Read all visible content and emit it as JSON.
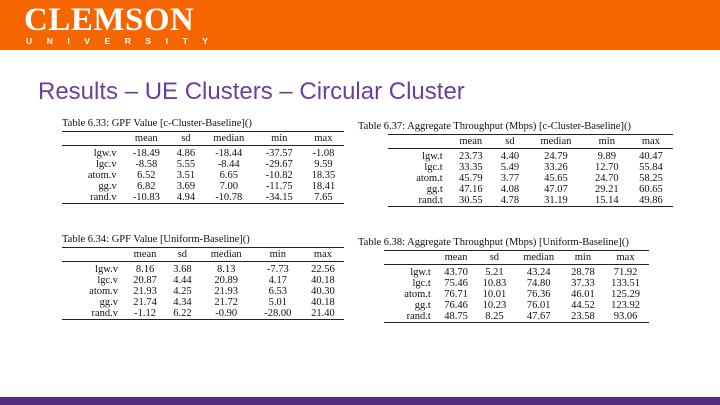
{
  "header": {
    "logo_word": "CLEMSON",
    "logo_sub": [
      "U",
      "N",
      "I",
      "V",
      "E",
      "R",
      "S",
      "I",
      "T",
      "Y"
    ]
  },
  "title": "Results – UE Clusters – Circular Cluster",
  "colors": {
    "orange": "#f56600",
    "purple": "#522d80",
    "title": "#6b3fa0"
  },
  "tables": [
    {
      "caption": "Table 6.33: GPF Value [c-Cluster-Baseline]()",
      "columns": [
        "",
        "mean",
        "sd",
        "median",
        "min",
        "max"
      ],
      "rows": [
        [
          "lgw.v",
          "-18.49",
          "4.86",
          "-18.44",
          "-37.57",
          "-1.08"
        ],
        [
          "lgc.v",
          "-8.58",
          "5.55",
          "-8.44",
          "-29.67",
          "9.59"
        ],
        [
          "atom.v",
          "6.52",
          "3.51",
          "6.65",
          "-10.82",
          "18.35"
        ],
        [
          "gg.v",
          "6.82",
          "3.69",
          "7.00",
          "-11.75",
          "18.41"
        ],
        [
          "rand.v",
          "-10.83",
          "4.94",
          "-10.78",
          "-34.15",
          "7.65"
        ]
      ]
    },
    {
      "caption": "Table 6.34: GPF Value [Uniform-Baseline]()",
      "columns": [
        "",
        "mean",
        "sd",
        "median",
        "min",
        "max"
      ],
      "rows": [
        [
          "lgw.v",
          "8.16",
          "3.68",
          "8.13",
          "-7.73",
          "22.56"
        ],
        [
          "lgc.v",
          "20.87",
          "4.44",
          "20.89",
          "4.17",
          "40.18"
        ],
        [
          "atom.v",
          "21.93",
          "4.25",
          "21.93",
          "6.53",
          "40.30"
        ],
        [
          "gg.v",
          "21.74",
          "4.34",
          "21.72",
          "5.01",
          "40.18"
        ],
        [
          "rand.v",
          "-1.12",
          "6.22",
          "-0.90",
          "-28.00",
          "21.40"
        ]
      ]
    },
    {
      "caption": "Table 6.37: Aggregate Throughput (Mbps) [c-Cluster-Baseline]()",
      "columns": [
        "",
        "mean",
        "sd",
        "median",
        "min",
        "max"
      ],
      "rows": [
        [
          "lgw.t",
          "23.73",
          "4.40",
          "24.79",
          "9.89",
          "40.47"
        ],
        [
          "lgc.t",
          "33.35",
          "5.49",
          "33.26",
          "12.70",
          "55.84"
        ],
        [
          "atom.t",
          "45.79",
          "3.77",
          "45.65",
          "24.70",
          "58.25"
        ],
        [
          "gg.t",
          "47.16",
          "4.08",
          "47.07",
          "29.21",
          "60.65"
        ],
        [
          "rand.t",
          "30.55",
          "4.78",
          "31.19",
          "15.14",
          "49.86"
        ]
      ]
    },
    {
      "caption": "Table 6.38: Aggregate Throughput (Mbps) [Uniform-Baseline]()",
      "columns": [
        "",
        "mean",
        "sd",
        "median",
        "min",
        "max"
      ],
      "rows": [
        [
          "lgw.t",
          "43.70",
          "5.21",
          "43.24",
          "28.78",
          "71.92"
        ],
        [
          "lgc.t",
          "75.46",
          "10.83",
          "74.80",
          "37.33",
          "133.51"
        ],
        [
          "atom.t",
          "76.71",
          "10.01",
          "76.36",
          "46.01",
          "125.29"
        ],
        [
          "gg.t",
          "76.46",
          "10.23",
          "76.01",
          "44.52",
          "123.92"
        ],
        [
          "rand.t",
          "48.75",
          "8.25",
          "47.67",
          "23.58",
          "93.06"
        ]
      ]
    }
  ]
}
